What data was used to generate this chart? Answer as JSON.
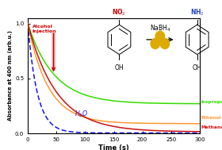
{
  "xlabel": "Time (s)",
  "ylabel": "Absorbance at 400 nm (arb.u.)",
  "xlim": [
    0,
    300
  ],
  "ylim": [
    0,
    1.05
  ],
  "x_ticks": [
    0,
    50,
    100,
    150,
    200,
    250,
    300
  ],
  "y_ticks": [
    0,
    0.5,
    1
  ],
  "iso_color": "#33dd00",
  "eth_color": "#ff9933",
  "meth_color": "#cc1111",
  "water_color": "#1111ee",
  "arrow_text_color": "#cc0000",
  "background_color": "#ffffff"
}
